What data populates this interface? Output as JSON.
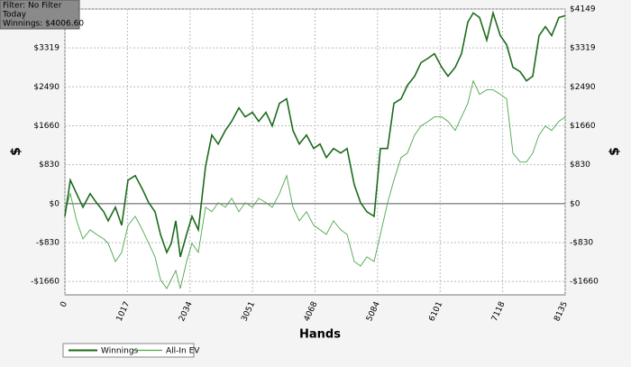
{
  "filter_box": {
    "lines": [
      "Filter: No Filter",
      "Today",
      "Winnings: $4006.60"
    ]
  },
  "chart_data": {
    "type": "line",
    "xlabel": "Hands",
    "ylabel": "$",
    "y2label": "$",
    "x": [
      0,
      88,
      191,
      293,
      410,
      513,
      630,
      704,
      821,
      923,
      1026,
      1143,
      1261,
      1363,
      1466,
      1554,
      1656,
      1730,
      1803,
      1876,
      1979,
      2067,
      2169,
      2287,
      2389,
      2492,
      2609,
      2712,
      2829,
      2932,
      3049,
      3151,
      3269,
      3371,
      3489,
      3606,
      3708,
      3811,
      3928,
      4046,
      4148,
      4251,
      4368,
      4485,
      4588,
      4705,
      4808,
      4910,
      5028,
      5130,
      5248,
      5350,
      5467,
      5570,
      5687,
      5790,
      5907,
      6010,
      6127,
      6230,
      6347,
      6450,
      6552,
      6640,
      6743,
      6860,
      6963,
      7080,
      7182,
      7285,
      7402,
      7505,
      7608,
      7710,
      7813,
      7915,
      8033,
      8135
    ],
    "series": [
      {
        "name": "Winnings",
        "color": "#1b6b1b",
        "width": 1.6,
        "values": [
          -270,
          500,
          212,
          -77,
          212,
          19,
          -173,
          -366,
          -77,
          -462,
          500,
          597,
          308,
          19,
          -173,
          -655,
          -1040,
          -847,
          -366,
          -1136,
          -655,
          -270,
          -559,
          790,
          1464,
          1271,
          1560,
          1753,
          2042,
          1849,
          1945,
          1753,
          1945,
          1656,
          2138,
          2234,
          1560,
          1271,
          1464,
          1175,
          1271,
          982,
          1175,
          1079,
          1175,
          404,
          19,
          -173,
          -270,
          1175,
          1175,
          2138,
          2234,
          2523,
          2716,
          3005,
          3101,
          3197,
          2908,
          2716,
          2908,
          3197,
          3871,
          4064,
          3968,
          3486,
          4064,
          3582,
          3390,
          2908,
          2812,
          2619,
          2716,
          3582,
          3775,
          3582,
          3968,
          4007
        ]
      },
      {
        "name": "All-In EV",
        "color": "#4ea64e",
        "width": 0.9,
        "values": [
          -173,
          212,
          -366,
          -751,
          -559,
          -655,
          -751,
          -847,
          -1233,
          -1040,
          -462,
          -270,
          -559,
          -847,
          -1136,
          -1618,
          -1810,
          -1618,
          -1425,
          -1810,
          -1233,
          -847,
          -1040,
          -77,
          -173,
          19,
          -77,
          116,
          -173,
          19,
          -77,
          116,
          19,
          -77,
          212,
          597,
          -77,
          -366,
          -173,
          -462,
          -559,
          -655,
          -366,
          -559,
          -655,
          -1233,
          -1329,
          -1136,
          -1233,
          -655,
          19,
          500,
          982,
          1079,
          1464,
          1656,
          1753,
          1849,
          1849,
          1753,
          1560,
          1849,
          2138,
          2619,
          2330,
          2427,
          2427,
          2330,
          2234,
          1079,
          886,
          886,
          1079,
          1464,
          1656,
          1560,
          1753,
          1849
        ]
      }
    ],
    "xlim": [
      0,
      8135
    ],
    "xticks": [
      0,
      1017,
      2034,
      3051,
      4068,
      5084,
      6101,
      7118,
      8135
    ],
    "ylim": [
      -1945,
      4149
    ],
    "yticks": [
      {
        "value": -1660,
        "label": "-$1660"
      },
      {
        "value": -830,
        "label": "-$830"
      },
      {
        "value": 0,
        "label": "$0"
      },
      {
        "value": 830,
        "label": "$830"
      },
      {
        "value": 1660,
        "label": "$1660"
      },
      {
        "value": 2490,
        "label": "$2490"
      },
      {
        "value": 3319,
        "label": "$3319"
      },
      {
        "value": 4149,
        "label": "$4149"
      }
    ],
    "grid": true
  }
}
